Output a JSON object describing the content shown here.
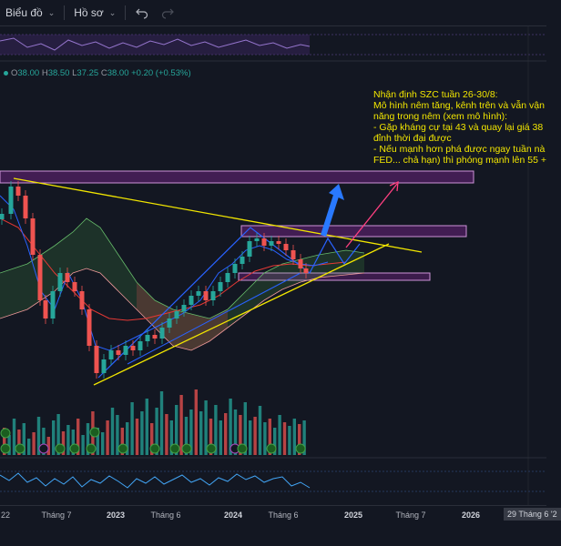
{
  "toolbar": {
    "chart_label": "Biểu đồ",
    "profile_label": "Hồ sơ"
  },
  "ohlc": {
    "o_key": "O",
    "o": "38.00",
    "h_key": "H",
    "h": "38.50",
    "l_key": "L",
    "l": "37.25",
    "c_key": "C",
    "c": "38.00",
    "change": "+0.20 (+0.53%)"
  },
  "annotation": {
    "lines": [
      "Nhận định SZC tuần 26-30/8:",
      "Mô hình nêm tăng, kênh trên và vẫn vận",
      "năng trong nêm (xem mô hình):",
      "- Gặp kháng cự tại 43 và quay lại giá 38",
      "đỉnh thời đại được",
      "- Nếu mạnh hơn phá được ngay tuần nà",
      "FED... chả hạn) thì phóng mạnh lên 55 +"
    ]
  },
  "time_axis": {
    "labels": [
      "22",
      "Tháng 7",
      "2023",
      "Tháng 6",
      "2024",
      "Tháng 6",
      "2025",
      "Tháng 7",
      "2026"
    ],
    "cursor_label": "29 Tháng 6 '2"
  },
  "colors": {
    "background": "#131722",
    "up": "#26a69a",
    "down": "#ef5350",
    "trendline": "#f2e600",
    "zone": "#9c27b0",
    "channel": "#2962ff",
    "arrow_blue": "#2979ff",
    "arrow_pink": "#ff4081"
  },
  "icons": {
    "chart_menu": "chevron-down-icon",
    "undo": "undo-icon",
    "redo": "redo-icon",
    "ohlc_marker": "dot-icon",
    "event_marker": "flag-icon"
  }
}
